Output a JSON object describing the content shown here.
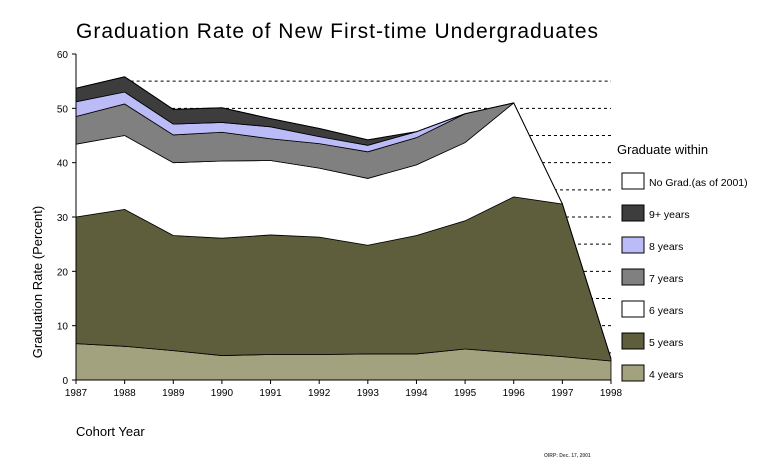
{
  "chart_data": {
    "type": "area",
    "title": "Graduation Rate of New First-time Undergraduates",
    "xlabel": "Cohort Year",
    "ylabel": "Graduation Rate (Percent)",
    "x": [
      1987,
      1988,
      1989,
      1990,
      1991,
      1992,
      1993,
      1994,
      1995,
      1996,
      1997,
      1998
    ],
    "ylim": [
      0,
      60
    ],
    "yticks": [
      0,
      10,
      20,
      30,
      40,
      50,
      60
    ],
    "stacked": true,
    "legend_title": "Graduate within",
    "legend_position": "right",
    "note": "OIRP: Dec. 17, 2001",
    "series": [
      {
        "name": "4 years",
        "color": "#a3a27f",
        "values": [
          6.7,
          6.2,
          5.4,
          4.5,
          4.7,
          4.7,
          4.8,
          4.8,
          5.7,
          5.0,
          4.3,
          3.5
        ]
      },
      {
        "name": "5 years",
        "color": "#5e5d3c",
        "values": [
          23.3,
          25.2,
          21.2,
          21.6,
          22.0,
          21.6,
          20.0,
          21.8,
          23.6,
          28.7,
          28.1,
          0.4
        ]
      },
      {
        "name": "6 years",
        "color": "#ffffff",
        "values": [
          13.4,
          13.6,
          13.4,
          14.2,
          13.7,
          12.7,
          12.3,
          13.0,
          14.4,
          17.3,
          null,
          null
        ]
      },
      {
        "name": "7 years",
        "color": "#808080",
        "values": [
          5.1,
          5.8,
          5.1,
          5.3,
          4.0,
          4.5,
          4.9,
          5.0,
          5.3,
          null,
          null,
          null
        ]
      },
      {
        "name": "8 years",
        "color": "#bbbbf8",
        "values": [
          2.7,
          2.2,
          2.0,
          1.8,
          2.2,
          1.3,
          1.2,
          1.1,
          null,
          null,
          null,
          null
        ]
      },
      {
        "name": "9+ years",
        "color": "#3d3d3d",
        "values": [
          2.5,
          2.8,
          2.7,
          2.7,
          1.5,
          1.5,
          1.0,
          null,
          null,
          null,
          null,
          null
        ]
      },
      {
        "name": "No Grad.(as of 2001)",
        "color": "#ffffff",
        "values": [
          null,
          null,
          null,
          null,
          null,
          null,
          null,
          null,
          null,
          null,
          null,
          null
        ]
      }
    ],
    "dashed_gridlines": [
      5,
      10,
      15,
      20,
      25,
      30,
      35,
      40,
      45,
      50,
      55
    ],
    "grid": "dashed horizontal lines right of data"
  }
}
